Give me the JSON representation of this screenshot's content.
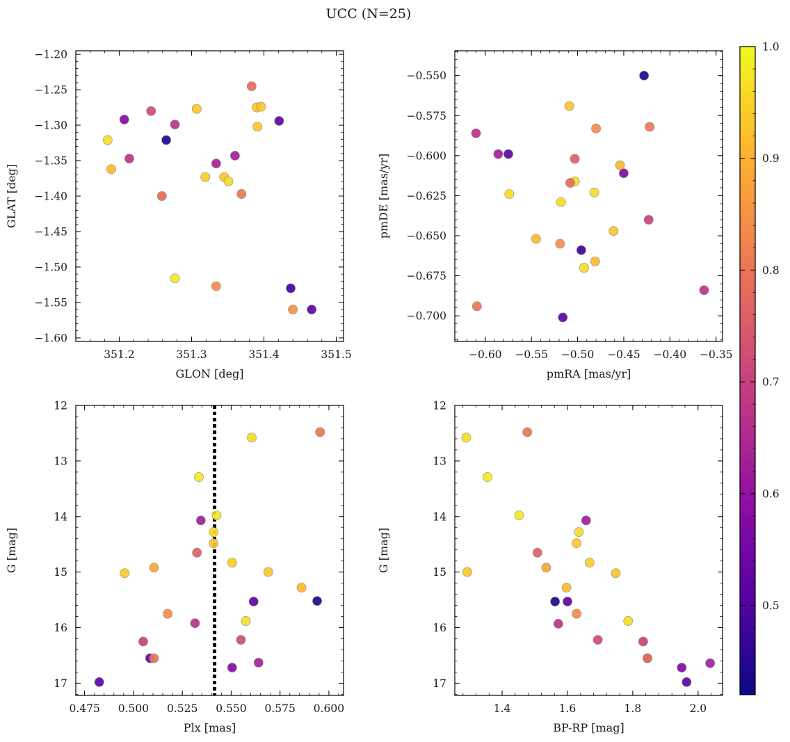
{
  "figure": {
    "title": "UCC (N=25)"
  },
  "colorbar": {
    "vmin": 0.42,
    "vmax": 1.0,
    "ticks": [
      0.5,
      0.6,
      0.7,
      0.8,
      0.9,
      1.0
    ],
    "tick_labels": [
      "0.5",
      "0.6",
      "0.7",
      "0.8",
      "0.9",
      "1.0"
    ],
    "colormap": "plasma"
  },
  "chart_data": [
    {
      "type": "scatter",
      "id": "glon-glat",
      "xlabel": "GLON [deg]",
      "ylabel": "GLAT [deg]",
      "xlim": [
        351.14,
        351.51
      ],
      "ylim": [
        -1.605,
        -1.195
      ],
      "xticks": [
        351.2,
        351.3,
        351.4,
        351.5
      ],
      "xtick_labels": [
        "351.2",
        "351.3",
        "351.4",
        "351.5"
      ],
      "yticks": [
        -1.2,
        -1.25,
        -1.3,
        -1.35,
        -1.4,
        -1.45,
        -1.5,
        -1.55,
        -1.6
      ],
      "ytick_labels": [
        "−1.20",
        "−1.25",
        "−1.30",
        "−1.35",
        "−1.40",
        "−1.45",
        "−1.50",
        "−1.55",
        "−1.60"
      ],
      "invert_y": false,
      "points": [
        {
          "x": 351.383,
          "y": -1.245,
          "c": 0.78
        },
        {
          "x": 351.307,
          "y": -1.277,
          "c": 0.93
        },
        {
          "x": 351.39,
          "y": -1.275,
          "c": 0.93
        },
        {
          "x": 351.396,
          "y": -1.274,
          "c": 0.93
        },
        {
          "x": 351.244,
          "y": -1.28,
          "c": 0.72
        },
        {
          "x": 351.207,
          "y": -1.292,
          "c": 0.58
        },
        {
          "x": 351.421,
          "y": -1.294,
          "c": 0.52
        },
        {
          "x": 351.277,
          "y": -1.299,
          "c": 0.67
        },
        {
          "x": 351.391,
          "y": -1.302,
          "c": 0.93
        },
        {
          "x": 351.184,
          "y": -1.321,
          "c": 0.96
        },
        {
          "x": 351.265,
          "y": -1.321,
          "c": 0.44
        },
        {
          "x": 351.36,
          "y": -1.343,
          "c": 0.63
        },
        {
          "x": 351.214,
          "y": -1.347,
          "c": 0.67
        },
        {
          "x": 351.334,
          "y": -1.354,
          "c": 0.63
        },
        {
          "x": 351.189,
          "y": -1.362,
          "c": 0.91
        },
        {
          "x": 351.319,
          "y": -1.373,
          "c": 0.94
        },
        {
          "x": 351.345,
          "y": -1.373,
          "c": 0.93
        },
        {
          "x": 351.351,
          "y": -1.379,
          "c": 0.96
        },
        {
          "x": 351.369,
          "y": -1.397,
          "c": 0.8
        },
        {
          "x": 351.259,
          "y": -1.4,
          "c": 0.78
        },
        {
          "x": 351.277,
          "y": -1.516,
          "c": 0.98
        },
        {
          "x": 351.334,
          "y": -1.527,
          "c": 0.84
        },
        {
          "x": 351.437,
          "y": -1.53,
          "c": 0.48
        },
        {
          "x": 351.44,
          "y": -1.56,
          "c": 0.85
        },
        {
          "x": 351.466,
          "y": -1.56,
          "c": 0.52
        }
      ]
    },
    {
      "type": "scatter",
      "id": "pmra-pmde",
      "xlabel": "pmRA [mas/yr]",
      "ylabel": "pmDE [mas/yr]",
      "xlim": [
        -0.633,
        -0.343
      ],
      "ylim": [
        -0.716,
        -0.5345
      ],
      "xticks": [
        -0.6,
        -0.55,
        -0.5,
        -0.45,
        -0.4,
        -0.35
      ],
      "xtick_labels": [
        "−0.60",
        "−0.55",
        "−0.50",
        "−0.45",
        "−0.40",
        "−0.35"
      ],
      "yticks": [
        -0.55,
        -0.575,
        -0.6,
        -0.625,
        -0.65,
        -0.675,
        -0.7
      ],
      "ytick_labels": [
        "−0.550",
        "−0.575",
        "−0.600",
        "−0.625",
        "−0.650",
        "−0.675",
        "−0.700"
      ],
      "invert_y": false,
      "points": [
        {
          "x": -0.428,
          "y": -0.55,
          "c": 0.44
        },
        {
          "x": -0.509,
          "y": -0.569,
          "c": 0.93
        },
        {
          "x": -0.48,
          "y": -0.583,
          "c": 0.84
        },
        {
          "x": -0.422,
          "y": -0.582,
          "c": 0.8
        },
        {
          "x": -0.61,
          "y": -0.586,
          "c": 0.67
        },
        {
          "x": -0.586,
          "y": -0.599,
          "c": 0.63
        },
        {
          "x": -0.575,
          "y": -0.599,
          "c": 0.52
        },
        {
          "x": -0.503,
          "y": -0.602,
          "c": 0.76
        },
        {
          "x": -0.454,
          "y": -0.606,
          "c": 0.91
        },
        {
          "x": -0.45,
          "y": -0.611,
          "c": 0.58
        },
        {
          "x": -0.503,
          "y": -0.616,
          "c": 0.96
        },
        {
          "x": -0.508,
          "y": -0.617,
          "c": 0.78
        },
        {
          "x": -0.574,
          "y": -0.624,
          "c": 0.96
        },
        {
          "x": -0.482,
          "y": -0.623,
          "c": 0.96
        },
        {
          "x": -0.518,
          "y": -0.629,
          "c": 0.96
        },
        {
          "x": -0.423,
          "y": -0.64,
          "c": 0.7
        },
        {
          "x": -0.461,
          "y": -0.647,
          "c": 0.93
        },
        {
          "x": -0.545,
          "y": -0.652,
          "c": 0.91
        },
        {
          "x": -0.519,
          "y": -0.655,
          "c": 0.84
        },
        {
          "x": -0.496,
          "y": -0.659,
          "c": 0.48
        },
        {
          "x": -0.481,
          "y": -0.666,
          "c": 0.91
        },
        {
          "x": -0.493,
          "y": -0.67,
          "c": 0.96
        },
        {
          "x": -0.363,
          "y": -0.684,
          "c": 0.67
        },
        {
          "x": -0.609,
          "y": -0.694,
          "c": 0.8
        },
        {
          "x": -0.516,
          "y": -0.701,
          "c": 0.52
        }
      ]
    },
    {
      "type": "scatter",
      "id": "plx-g",
      "xlabel": "Plx [mas]",
      "ylabel": "G [mag]",
      "xlim": [
        0.4705,
        0.6075
      ],
      "ylim": [
        12.0,
        17.22
      ],
      "xticks": [
        0.475,
        0.5,
        0.525,
        0.55,
        0.575,
        0.6
      ],
      "xtick_labels": [
        "0.475",
        "0.500",
        "0.525",
        "0.550",
        "0.575",
        "0.600"
      ],
      "yticks": [
        12,
        13,
        14,
        15,
        16,
        17
      ],
      "ytick_labels": [
        "12",
        "13",
        "14",
        "15",
        "16",
        "17"
      ],
      "invert_y": true,
      "vline": 0.5415,
      "points": [
        {
          "x": 0.5955,
          "y": 12.48,
          "c": 0.8
        },
        {
          "x": 0.5605,
          "y": 12.58,
          "c": 0.96
        },
        {
          "x": 0.5335,
          "y": 13.29,
          "c": 0.98
        },
        {
          "x": 0.5345,
          "y": 14.07,
          "c": 0.63
        },
        {
          "x": 0.5425,
          "y": 13.98,
          "c": 0.98
        },
        {
          "x": 0.541,
          "y": 14.28,
          "c": 0.96
        },
        {
          "x": 0.541,
          "y": 14.48,
          "c": 0.93
        },
        {
          "x": 0.5325,
          "y": 14.65,
          "c": 0.76
        },
        {
          "x": 0.5505,
          "y": 14.83,
          "c": 0.94
        },
        {
          "x": 0.5105,
          "y": 14.92,
          "c": 0.88
        },
        {
          "x": 0.4955,
          "y": 15.02,
          "c": 0.93
        },
        {
          "x": 0.569,
          "y": 15.0,
          "c": 0.93
        },
        {
          "x": 0.586,
          "y": 15.28,
          "c": 0.91
        },
        {
          "x": 0.5615,
          "y": 15.53,
          "c": 0.52
        },
        {
          "x": 0.594,
          "y": 15.52,
          "c": 0.44
        },
        {
          "x": 0.5175,
          "y": 15.75,
          "c": 0.84
        },
        {
          "x": 0.5575,
          "y": 15.88,
          "c": 0.96
        },
        {
          "x": 0.5315,
          "y": 15.92,
          "c": 0.67
        },
        {
          "x": 0.505,
          "y": 16.25,
          "c": 0.7
        },
        {
          "x": 0.555,
          "y": 16.22,
          "c": 0.72
        },
        {
          "x": 0.5085,
          "y": 16.55,
          "c": 0.52
        },
        {
          "x": 0.5105,
          "y": 16.55,
          "c": 0.8
        },
        {
          "x": 0.564,
          "y": 16.63,
          "c": 0.63
        },
        {
          "x": 0.5505,
          "y": 16.72,
          "c": 0.58
        },
        {
          "x": 0.4825,
          "y": 16.98,
          "c": 0.52
        }
      ]
    },
    {
      "type": "scatter",
      "id": "bprp-g",
      "xlabel": "BP-RP [mag]",
      "ylabel": "G [mag]",
      "xlim": [
        1.255,
        2.075
      ],
      "ylim": [
        12.0,
        17.22
      ],
      "xticks": [
        1.4,
        1.6,
        1.8,
        2.0
      ],
      "xtick_labels": [
        "1.4",
        "1.6",
        "1.8",
        "2.0"
      ],
      "yticks": [
        12,
        13,
        14,
        15,
        16,
        17
      ],
      "ytick_labels": [
        "12",
        "13",
        "14",
        "15",
        "16",
        "17"
      ],
      "invert_y": true,
      "points": [
        {
          "x": 1.29,
          "y": 12.58,
          "c": 0.96
        },
        {
          "x": 1.477,
          "y": 12.48,
          "c": 0.8
        },
        {
          "x": 1.355,
          "y": 13.29,
          "c": 0.98
        },
        {
          "x": 1.452,
          "y": 13.98,
          "c": 0.98
        },
        {
          "x": 1.657,
          "y": 14.07,
          "c": 0.63
        },
        {
          "x": 1.635,
          "y": 14.28,
          "c": 0.96
        },
        {
          "x": 1.628,
          "y": 14.48,
          "c": 0.93
        },
        {
          "x": 1.508,
          "y": 14.65,
          "c": 0.76
        },
        {
          "x": 1.668,
          "y": 14.83,
          "c": 0.94
        },
        {
          "x": 1.535,
          "y": 14.92,
          "c": 0.88
        },
        {
          "x": 1.293,
          "y": 15.0,
          "c": 0.93
        },
        {
          "x": 1.748,
          "y": 15.02,
          "c": 0.93
        },
        {
          "x": 1.597,
          "y": 15.28,
          "c": 0.91
        },
        {
          "x": 1.562,
          "y": 15.53,
          "c": 0.44
        },
        {
          "x": 1.6,
          "y": 15.53,
          "c": 0.52
        },
        {
          "x": 1.628,
          "y": 15.75,
          "c": 0.84
        },
        {
          "x": 1.786,
          "y": 15.88,
          "c": 0.96
        },
        {
          "x": 1.572,
          "y": 15.93,
          "c": 0.67
        },
        {
          "x": 1.693,
          "y": 16.22,
          "c": 0.72
        },
        {
          "x": 1.832,
          "y": 16.25,
          "c": 0.7
        },
        {
          "x": 1.845,
          "y": 16.55,
          "c": 0.52
        },
        {
          "x": 1.845,
          "y": 16.55,
          "c": 0.8
        },
        {
          "x": 2.037,
          "y": 16.64,
          "c": 0.63
        },
        {
          "x": 1.95,
          "y": 16.72,
          "c": 0.58
        },
        {
          "x": 1.965,
          "y": 16.98,
          "c": 0.52
        }
      ]
    }
  ]
}
